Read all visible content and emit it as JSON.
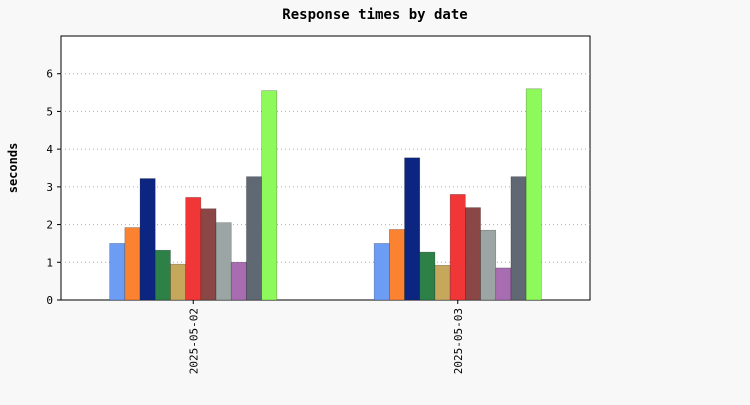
{
  "chart_data": {
    "type": "bar",
    "title": "Response times by date",
    "xlabel": "",
    "ylabel": "seconds",
    "ylim": [
      0,
      7
    ],
    "yticks": [
      0,
      1,
      2,
      3,
      4,
      5,
      6
    ],
    "grid": "horizontal dotted",
    "legend": "none",
    "categories": [
      "2025-05-02",
      "2025-05-03"
    ],
    "colors": [
      "#6d9cf5",
      "#fb8230",
      "#0b2581",
      "#2d8147",
      "#c5a85c",
      "#f03636",
      "#8b4745",
      "#9aa5a4",
      "#a86db0",
      "#5f6873",
      "#8ef95a"
    ],
    "bar_order": [
      0,
      1,
      2,
      3,
      4,
      5,
      6,
      7,
      8,
      9,
      10
    ],
    "series": [
      {
        "values": [
          1.5,
          1.5
        ]
      },
      {
        "values": [
          1.92,
          1.87
        ]
      },
      {
        "values": [
          3.22,
          3.77
        ]
      },
      {
        "values": [
          1.32,
          1.27
        ]
      },
      {
        "values": [
          0.95,
          0.92
        ]
      },
      {
        "values": [
          2.72,
          2.8
        ]
      },
      {
        "values": [
          2.42,
          2.45
        ]
      },
      {
        "values": [
          2.05,
          1.85
        ]
      },
      {
        "values": [
          1.0,
          0.85
        ]
      },
      {
        "values": [
          3.27,
          3.27
        ]
      },
      {
        "values": [
          5.55,
          5.6
        ]
      }
    ]
  }
}
